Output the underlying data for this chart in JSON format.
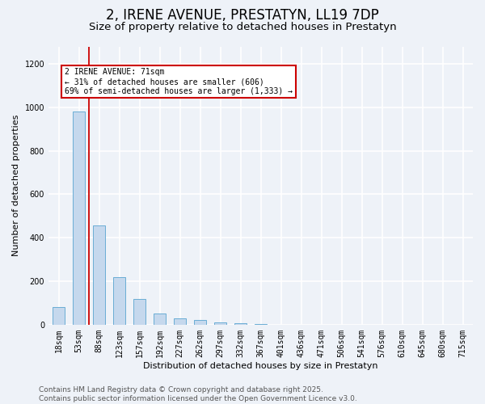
{
  "title": "2, IRENE AVENUE, PRESTATYN, LL19 7DP",
  "subtitle": "Size of property relative to detached houses in Prestatyn",
  "xlabel": "Distribution of detached houses by size in Prestatyn",
  "ylabel": "Number of detached properties",
  "categories": [
    "18sqm",
    "53sqm",
    "88sqm",
    "123sqm",
    "157sqm",
    "192sqm",
    "227sqm",
    "262sqm",
    "297sqm",
    "332sqm",
    "367sqm",
    "401sqm",
    "436sqm",
    "471sqm",
    "506sqm",
    "541sqm",
    "576sqm",
    "610sqm",
    "645sqm",
    "680sqm",
    "715sqm"
  ],
  "values": [
    80,
    980,
    455,
    220,
    120,
    50,
    28,
    20,
    12,
    5,
    2,
    0,
    0,
    0,
    0,
    0,
    0,
    0,
    0,
    0,
    0
  ],
  "bar_color": "#c5d8ed",
  "bar_edge_color": "#6aadd5",
  "vline_color": "#cc0000",
  "vline_pos": 1.5,
  "annotation_text": "2 IRENE AVENUE: 71sqm\n← 31% of detached houses are smaller (606)\n69% of semi-detached houses are larger (1,333) →",
  "annotation_box_facecolor": "#ffffff",
  "annotation_box_edgecolor": "#cc0000",
  "ylim": [
    0,
    1280
  ],
  "yticks": [
    0,
    200,
    400,
    600,
    800,
    1000,
    1200
  ],
  "background_color": "#eef2f8",
  "grid_color": "#ffffff",
  "footer_text": "Contains HM Land Registry data © Crown copyright and database right 2025.\nContains public sector information licensed under the Open Government Licence v3.0.",
  "title_fontsize": 12,
  "subtitle_fontsize": 9.5,
  "axis_label_fontsize": 8,
  "tick_fontsize": 7,
  "footer_fontsize": 6.5
}
